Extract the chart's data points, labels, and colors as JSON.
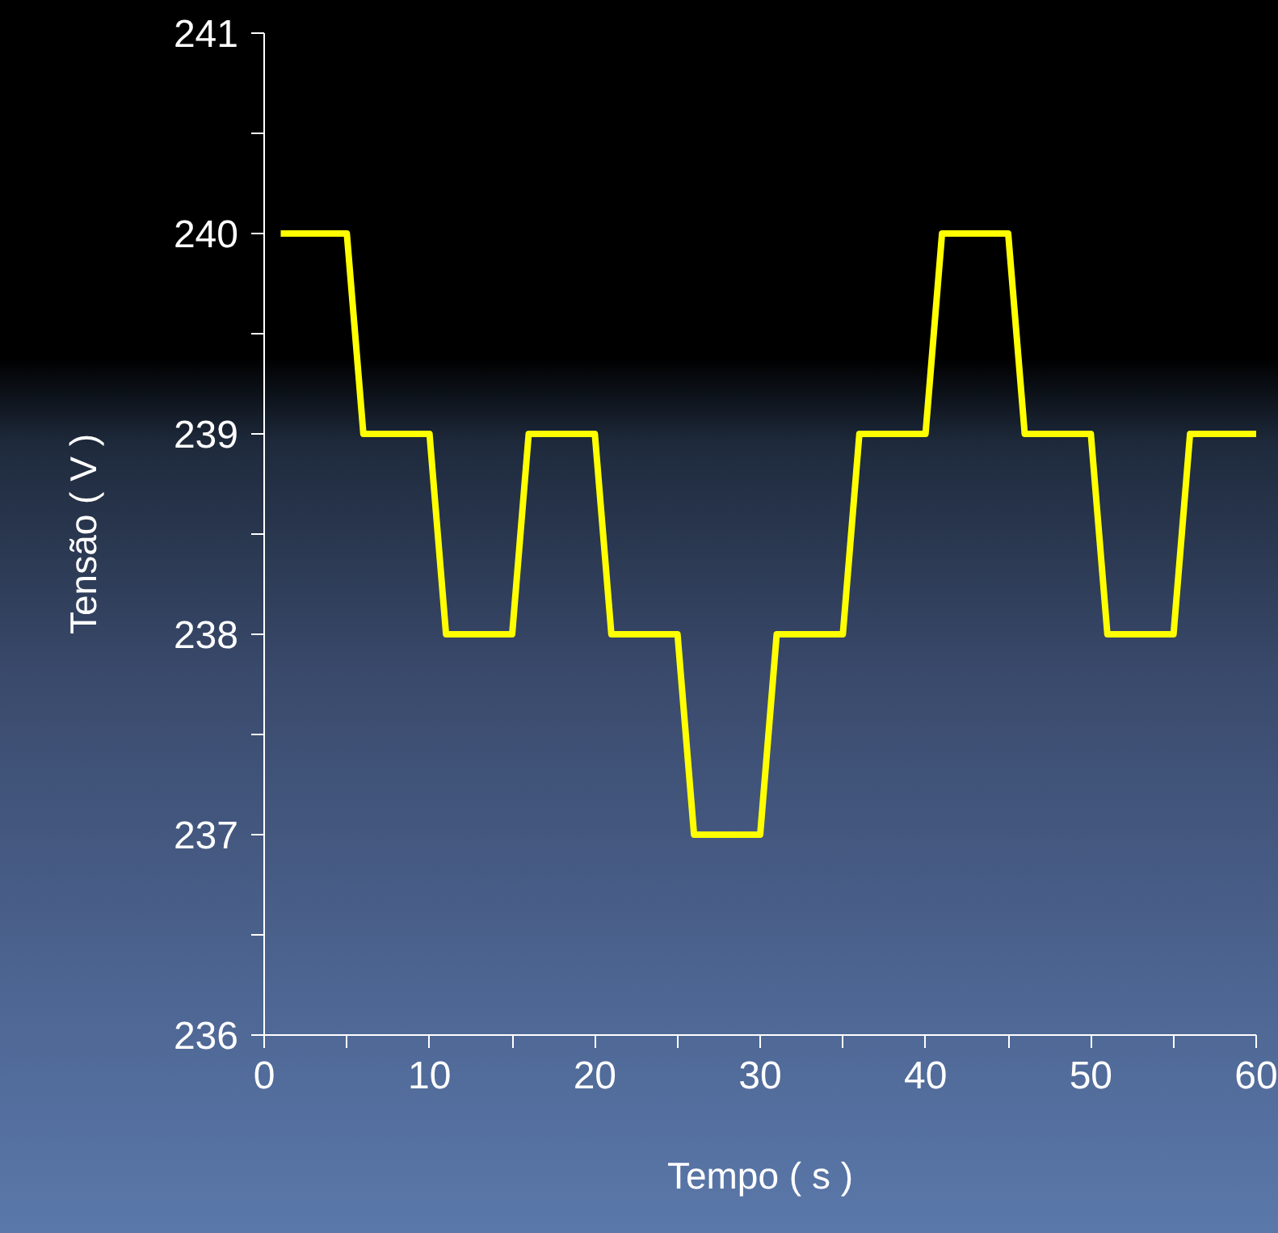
{
  "chart_data": {
    "type": "line",
    "xlabel": "Tempo ( s )",
    "ylabel": "Tensão ( V )",
    "x": [
      1,
      5,
      6,
      10,
      11,
      15,
      16,
      20,
      21,
      25,
      26,
      30,
      31,
      35,
      36,
      40,
      41,
      45,
      46,
      50,
      51,
      55,
      56,
      60
    ],
    "series": [
      {
        "color": "#ffff00",
        "values": [
          240,
          240,
          239,
          239,
          238,
          238,
          239,
          239,
          238,
          238,
          237,
          237,
          238,
          238,
          239,
          239,
          240,
          240,
          239,
          239,
          238,
          238,
          239,
          239
        ]
      }
    ],
    "xlim": [
      0,
      60
    ],
    "ylim": [
      236,
      241
    ],
    "xticks": [
      0,
      {
        "value": 5,
        "label": null
      },
      10,
      {
        "value": 15,
        "label": null
      },
      20,
      {
        "value": 25,
        "label": null
      },
      30,
      {
        "value": 35,
        "label": null
      },
      40,
      {
        "value": 45,
        "label": null
      },
      50,
      {
        "value": 55,
        "label": null
      },
      60
    ],
    "yticks": [
      236,
      {
        "value": 236.5,
        "label": null
      },
      237,
      {
        "value": 237.5,
        "label": null
      },
      238,
      {
        "value": 238.5,
        "label": null
      },
      239,
      {
        "value": 239.5,
        "label": null
      },
      240,
      {
        "value": 240.5,
        "label": null
      },
      241
    ],
    "grid": false
  }
}
